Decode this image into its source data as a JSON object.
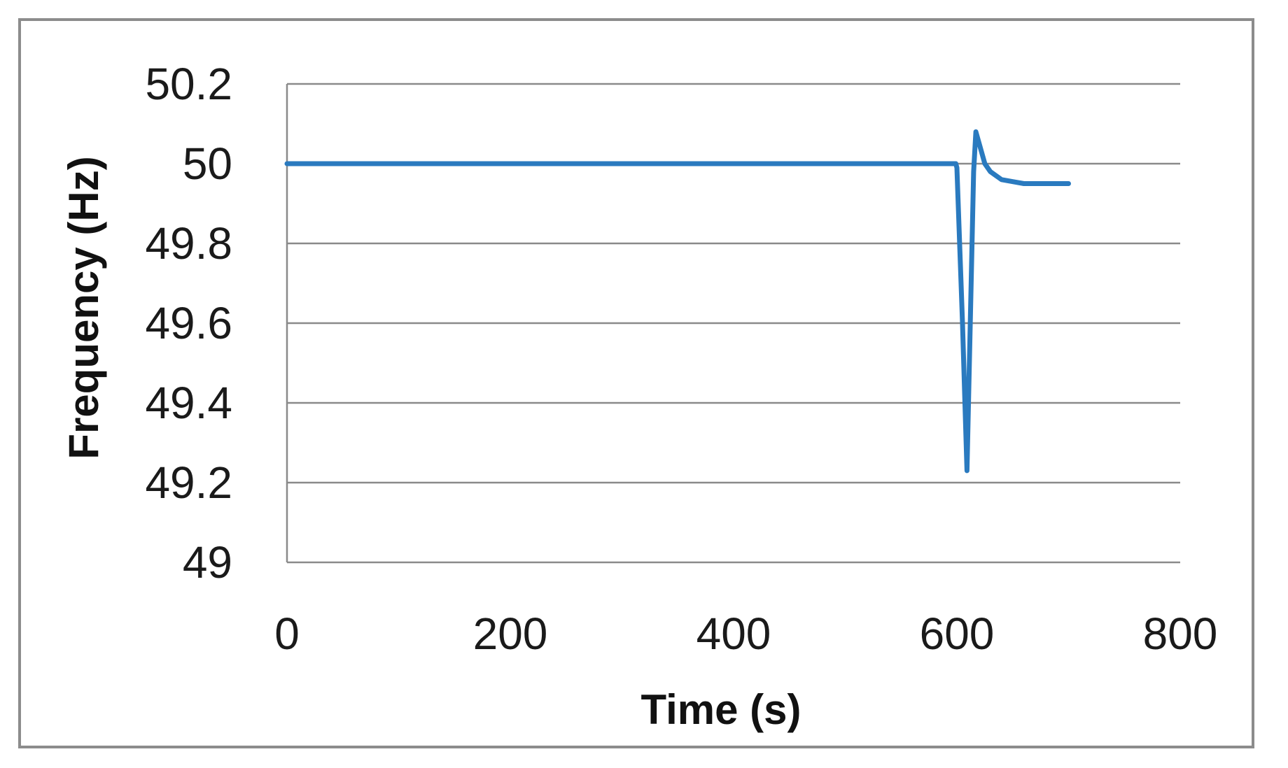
{
  "chart_data": {
    "type": "line",
    "title": "",
    "xlabel": "Time (s)",
    "ylabel": "Frequency (Hz)",
    "xlim": [
      0,
      800
    ],
    "ylim": [
      49,
      50.2
    ],
    "x_ticks": [
      "0",
      "200",
      "400",
      "600",
      "800"
    ],
    "y_ticks": [
      "49",
      "49.2",
      "49.4",
      "49.6",
      "49.8",
      "50",
      "50.2"
    ],
    "grid": "horizontal",
    "legend": "none",
    "line_color": "#2a7abf",
    "series": [
      {
        "x": [
          0,
          599,
          600,
          605,
          609,
          612,
          615,
          617,
          620,
          625,
          630,
          640,
          650,
          660,
          680,
          700
        ],
        "y": [
          50.0,
          50.0,
          49.99,
          49.6,
          49.23,
          49.6,
          49.98,
          50.08,
          50.05,
          50.0,
          49.98,
          49.96,
          49.955,
          49.95,
          49.95,
          49.95
        ]
      }
    ]
  }
}
